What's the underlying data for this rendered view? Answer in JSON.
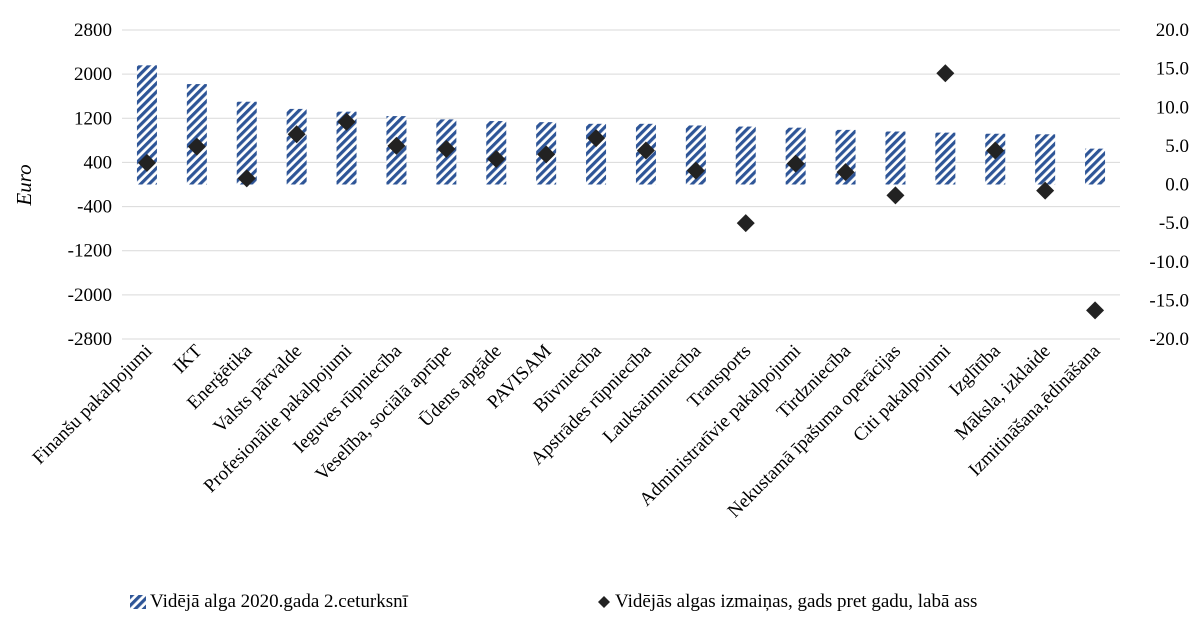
{
  "chart_data": {
    "type": "bar",
    "ylabel": "Euro",
    "ylim": [
      -2800,
      2800
    ],
    "y2lim": [
      -20.0,
      20.0
    ],
    "yticks": [
      "2800",
      "2000",
      "1200",
      "400",
      "-400",
      "-1200",
      "-2000",
      "-2800"
    ],
    "y2ticks": [
      "20.0",
      "15.0",
      "10.0",
      "5.0",
      "0.0",
      "-5.0",
      "-10.0",
      "-15.0",
      "-20.0"
    ],
    "grid": true,
    "legend_position": "bottom",
    "categories": [
      "Finanšu pakalpojumi",
      "IKT",
      "Enerģētika",
      "Valsts pārvalde",
      "Profesionālie pakalpojumi",
      "Ieguves rūpniecība",
      "Veselība, sociālā aprūpe",
      "Ūdens apgāde",
      "PAVISAM",
      "Būvniecība",
      "Apstrādes rūpniecība",
      "Lauksaimniecība",
      "Transports",
      "Administratīvie pakalpojumi",
      "Tirdzniecība",
      "Nekustamā īpašuma operācijas",
      "Citi pakalpojumi",
      "Izglītība",
      "Māksla, izklaide",
      "Izmitināšana,ēdināšana"
    ],
    "series": [
      {
        "name": "Vidējā alga 2020.gada 2.ceturksnī",
        "type": "bar",
        "axis": "left",
        "color": "#2e5597",
        "values": [
          2160,
          1820,
          1500,
          1370,
          1320,
          1240,
          1180,
          1150,
          1130,
          1100,
          1100,
          1070,
          1050,
          1030,
          990,
          960,
          940,
          920,
          910,
          650
        ]
      },
      {
        "name": "Vidējās algas izmaiņas, gads pret gadu, labā ass",
        "type": "scatter",
        "axis": "right",
        "color": "#222222",
        "values": [
          2.8,
          4.9,
          0.8,
          6.5,
          8.1,
          5.0,
          4.6,
          3.3,
          3.9,
          6.0,
          4.4,
          1.8,
          -5.0,
          2.7,
          1.6,
          -1.4,
          14.4,
          4.4,
          -0.8,
          -16.3
        ]
      }
    ]
  }
}
